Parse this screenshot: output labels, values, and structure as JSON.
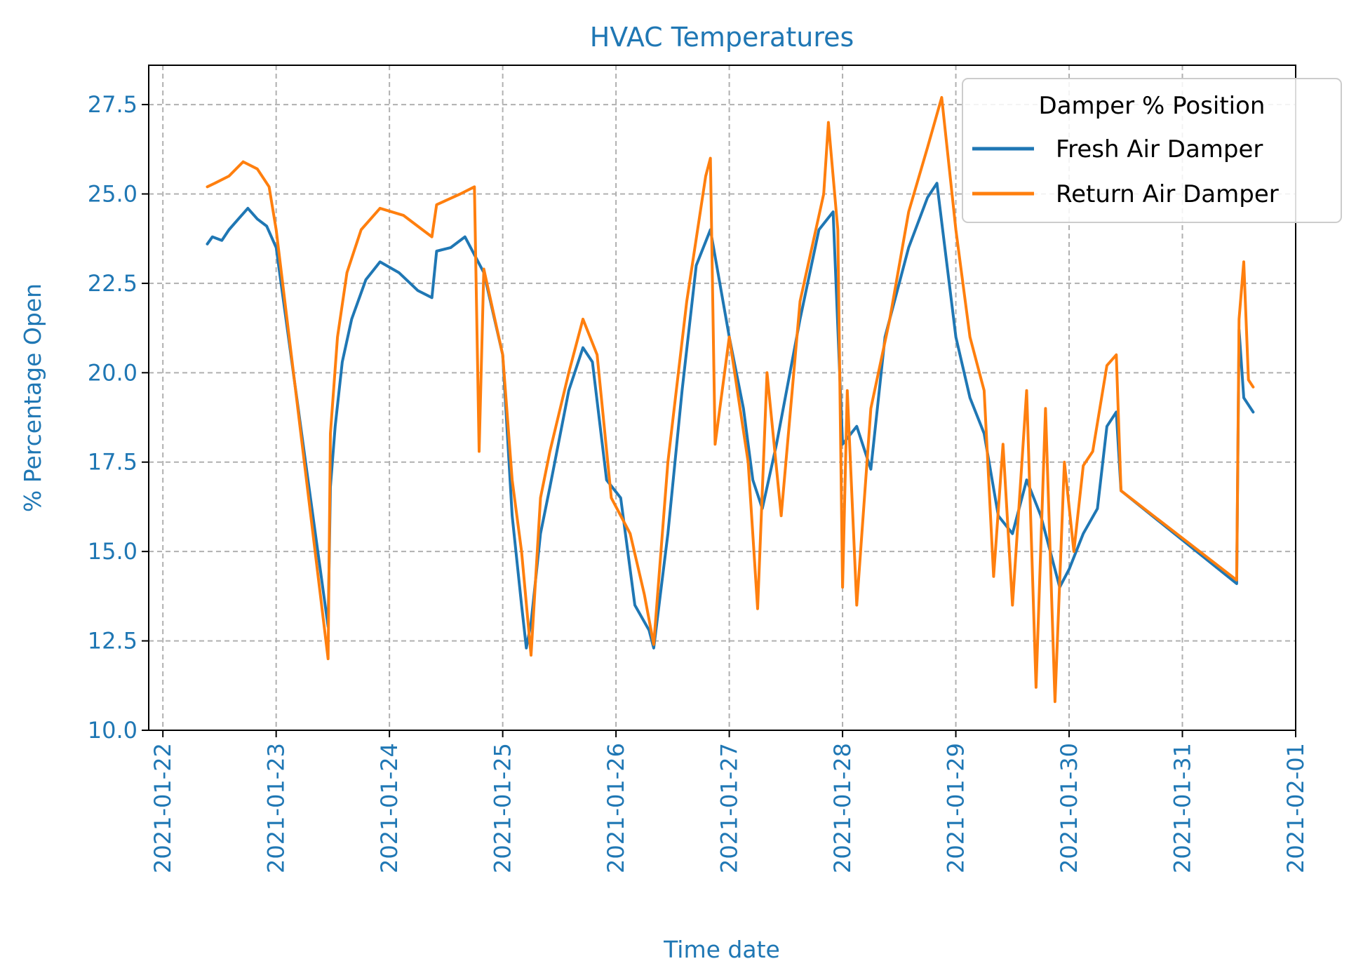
{
  "chart_data": {
    "type": "line",
    "title": "HVAC Temperatures",
    "xlabel": "Time date",
    "ylabel": "% Percentage Open",
    "xlim": [
      "2021-01-21T21:00",
      "2021-02-01T00:00"
    ],
    "ylim": [
      10.0,
      28.6
    ],
    "yticks": [
      10.0,
      12.5,
      15.0,
      17.5,
      20.0,
      22.5,
      25.0,
      27.5
    ],
    "ytick_labels": [
      "10.0",
      "12.5",
      "15.0",
      "17.5",
      "20.0",
      "22.5",
      "25.0",
      "27.5"
    ],
    "xticks": [
      "2021-01-22",
      "2021-01-23",
      "2021-01-24",
      "2021-01-25",
      "2021-01-26",
      "2021-01-27",
      "2021-01-28",
      "2021-01-29",
      "2021-01-30",
      "2021-01-31",
      "2021-02-01"
    ],
    "grid": true,
    "legend": {
      "title": "Damper % Position",
      "placement": "top-right"
    },
    "colors": {
      "axis_text": "#1f77b4",
      "title": "#1f77b4",
      "grid": "#b0b0b0"
    },
    "series": [
      {
        "name": "Fresh Air Damper",
        "color": "#1f77b4",
        "points": [
          [
            "2021-01-22T09:25",
            23.6
          ],
          [
            "2021-01-22T10:30",
            23.8
          ],
          [
            "2021-01-22T12:30",
            23.7
          ],
          [
            "2021-01-22T14:00",
            24.0
          ],
          [
            "2021-01-22T16:00",
            24.3
          ],
          [
            "2021-01-22T18:00",
            24.6
          ],
          [
            "2021-01-22T20:00",
            24.3
          ],
          [
            "2021-01-22T22:00",
            24.1
          ],
          [
            "2021-01-23T00:00",
            23.5
          ],
          [
            "2021-01-23T11:00",
            12.9
          ],
          [
            "2021-01-23T11:30",
            16.8
          ],
          [
            "2021-01-23T12:30",
            18.5
          ],
          [
            "2021-01-23T14:00",
            20.3
          ],
          [
            "2021-01-23T16:00",
            21.5
          ],
          [
            "2021-01-23T19:00",
            22.6
          ],
          [
            "2021-01-23T22:00",
            23.1
          ],
          [
            "2021-01-24T02:00",
            22.8
          ],
          [
            "2021-01-24T06:00",
            22.3
          ],
          [
            "2021-01-24T09:00",
            22.1
          ],
          [
            "2021-01-24T10:00",
            23.4
          ],
          [
            "2021-01-24T13:00",
            23.5
          ],
          [
            "2021-01-24T16:00",
            23.8
          ],
          [
            "2021-01-24T20:00",
            22.8
          ],
          [
            "2021-01-25T00:00",
            20.5
          ],
          [
            "2021-01-25T02:00",
            16.0
          ],
          [
            "2021-01-25T04:00",
            13.5
          ],
          [
            "2021-01-25T05:00",
            12.3
          ],
          [
            "2021-01-25T06:00",
            13.0
          ],
          [
            "2021-01-25T08:00",
            15.5
          ],
          [
            "2021-01-25T10:00",
            16.8
          ],
          [
            "2021-01-25T14:00",
            19.5
          ],
          [
            "2021-01-25T17:00",
            20.7
          ],
          [
            "2021-01-25T19:00",
            20.3
          ],
          [
            "2021-01-25T22:00",
            17.0
          ],
          [
            "2021-01-26T01:00",
            16.5
          ],
          [
            "2021-01-26T04:00",
            13.5
          ],
          [
            "2021-01-26T07:00",
            12.8
          ],
          [
            "2021-01-26T08:00",
            12.3
          ],
          [
            "2021-01-26T11:00",
            15.5
          ],
          [
            "2021-01-26T14:00",
            19.5
          ],
          [
            "2021-01-26T17:00",
            23.0
          ],
          [
            "2021-01-26T20:00",
            24.0
          ],
          [
            "2021-01-27T00:00",
            21.0
          ],
          [
            "2021-01-27T03:00",
            19.0
          ],
          [
            "2021-01-27T05:00",
            17.0
          ],
          [
            "2021-01-27T07:00",
            16.2
          ],
          [
            "2021-01-27T10:00",
            18.0
          ],
          [
            "2021-01-27T15:00",
            21.5
          ],
          [
            "2021-01-27T19:00",
            24.0
          ],
          [
            "2021-01-27T22:00",
            24.5
          ],
          [
            "2021-01-28T00:00",
            18.0
          ],
          [
            "2021-01-28T03:00",
            18.5
          ],
          [
            "2021-01-28T06:00",
            17.3
          ],
          [
            "2021-01-28T09:00",
            21.0
          ],
          [
            "2021-01-28T14:00",
            23.5
          ],
          [
            "2021-01-28T18:00",
            24.9
          ],
          [
            "2021-01-28T20:00",
            25.3
          ],
          [
            "2021-01-29T00:00",
            21.0
          ],
          [
            "2021-01-29T03:00",
            19.3
          ],
          [
            "2021-01-29T06:00",
            18.3
          ],
          [
            "2021-01-29T09:00",
            16.0
          ],
          [
            "2021-01-29T12:00",
            15.5
          ],
          [
            "2021-01-29T15:00",
            17.0
          ],
          [
            "2021-01-29T18:00",
            16.0
          ],
          [
            "2021-01-29T22:00",
            14.0
          ],
          [
            "2021-01-30T00:00",
            14.5
          ],
          [
            "2021-01-30T03:00",
            15.5
          ],
          [
            "2021-01-30T06:00",
            16.2
          ],
          [
            "2021-01-30T08:00",
            18.5
          ],
          [
            "2021-01-30T10:00",
            18.9
          ],
          [
            "2021-01-30T11:00",
            16.7
          ],
          [
            "2021-01-31T11:30",
            14.1
          ],
          [
            "2021-01-31T12:00",
            21.2
          ],
          [
            "2021-01-31T13:00",
            19.3
          ],
          [
            "2021-01-31T15:00",
            18.9
          ]
        ]
      },
      {
        "name": "Return Air Damper",
        "color": "#ff7f0e",
        "points": [
          [
            "2021-01-22T09:25",
            25.2
          ],
          [
            "2021-01-22T11:00",
            25.3
          ],
          [
            "2021-01-22T14:00",
            25.5
          ],
          [
            "2021-01-22T17:00",
            25.9
          ],
          [
            "2021-01-22T20:00",
            25.7
          ],
          [
            "2021-01-22T22:30",
            25.2
          ],
          [
            "2021-01-23T00:00",
            24.0
          ],
          [
            "2021-01-23T11:00",
            12.0
          ],
          [
            "2021-01-23T11:30",
            18.3
          ],
          [
            "2021-01-23T13:00",
            21.0
          ],
          [
            "2021-01-23T15:00",
            22.8
          ],
          [
            "2021-01-23T18:00",
            24.0
          ],
          [
            "2021-01-23T22:00",
            24.6
          ],
          [
            "2021-01-24T03:00",
            24.4
          ],
          [
            "2021-01-24T07:00",
            24.0
          ],
          [
            "2021-01-24T09:00",
            23.8
          ],
          [
            "2021-01-24T10:00",
            24.7
          ],
          [
            "2021-01-24T15:00",
            25.0
          ],
          [
            "2021-01-24T18:00",
            25.2
          ],
          [
            "2021-01-24T19:00",
            17.8
          ],
          [
            "2021-01-24T20:00",
            22.9
          ],
          [
            "2021-01-25T00:00",
            20.5
          ],
          [
            "2021-01-25T02:00",
            17.0
          ],
          [
            "2021-01-25T04:00",
            15.0
          ],
          [
            "2021-01-25T06:00",
            12.1
          ],
          [
            "2021-01-25T08:00",
            16.5
          ],
          [
            "2021-01-25T10:00",
            17.8
          ],
          [
            "2021-01-25T14:00",
            20.0
          ],
          [
            "2021-01-25T17:00",
            21.5
          ],
          [
            "2021-01-25T20:00",
            20.5
          ],
          [
            "2021-01-25T23:00",
            16.5
          ],
          [
            "2021-01-26T03:00",
            15.5
          ],
          [
            "2021-01-26T06:00",
            13.8
          ],
          [
            "2021-01-26T08:00",
            12.4
          ],
          [
            "2021-01-26T11:00",
            17.5
          ],
          [
            "2021-01-26T15:00",
            22.0
          ],
          [
            "2021-01-26T19:00",
            25.5
          ],
          [
            "2021-01-26T20:00",
            26.0
          ],
          [
            "2021-01-26T21:00",
            18.0
          ],
          [
            "2021-01-27T00:00",
            21.0
          ],
          [
            "2021-01-27T04:00",
            17.5
          ],
          [
            "2021-01-27T06:00",
            13.4
          ],
          [
            "2021-01-27T08:00",
            20.0
          ],
          [
            "2021-01-27T11:00",
            16.0
          ],
          [
            "2021-01-27T15:00",
            22.0
          ],
          [
            "2021-01-27T20:00",
            25.0
          ],
          [
            "2021-01-27T21:00",
            27.0
          ],
          [
            "2021-01-27T23:00",
            24.0
          ],
          [
            "2021-01-28T00:00",
            14.0
          ],
          [
            "2021-01-28T01:00",
            19.5
          ],
          [
            "2021-01-28T03:00",
            13.5
          ],
          [
            "2021-01-28T06:00",
            19.0
          ],
          [
            "2021-01-28T10:00",
            21.5
          ],
          [
            "2021-01-28T14:00",
            24.5
          ],
          [
            "2021-01-28T18:00",
            26.3
          ],
          [
            "2021-01-28T21:00",
            27.7
          ],
          [
            "2021-01-29T00:00",
            24.0
          ],
          [
            "2021-01-29T03:00",
            21.0
          ],
          [
            "2021-01-29T06:00",
            19.5
          ],
          [
            "2021-01-29T08:00",
            14.3
          ],
          [
            "2021-01-29T10:00",
            18.0
          ],
          [
            "2021-01-29T12:00",
            13.5
          ],
          [
            "2021-01-29T15:00",
            19.5
          ],
          [
            "2021-01-29T17:00",
            11.2
          ],
          [
            "2021-01-29T19:00",
            19.0
          ],
          [
            "2021-01-29T21:00",
            10.8
          ],
          [
            "2021-01-29T23:00",
            17.5
          ],
          [
            "2021-01-30T01:00",
            15.0
          ],
          [
            "2021-01-30T03:00",
            17.4
          ],
          [
            "2021-01-30T05:00",
            17.8
          ],
          [
            "2021-01-30T08:00",
            20.2
          ],
          [
            "2021-01-30T10:00",
            20.5
          ],
          [
            "2021-01-30T11:00",
            16.7
          ],
          [
            "2021-01-31T11:30",
            14.2
          ],
          [
            "2021-01-31T12:00",
            21.5
          ],
          [
            "2021-01-31T13:00",
            23.1
          ],
          [
            "2021-01-31T14:00",
            19.8
          ],
          [
            "2021-01-31T15:00",
            19.6
          ]
        ]
      }
    ]
  }
}
